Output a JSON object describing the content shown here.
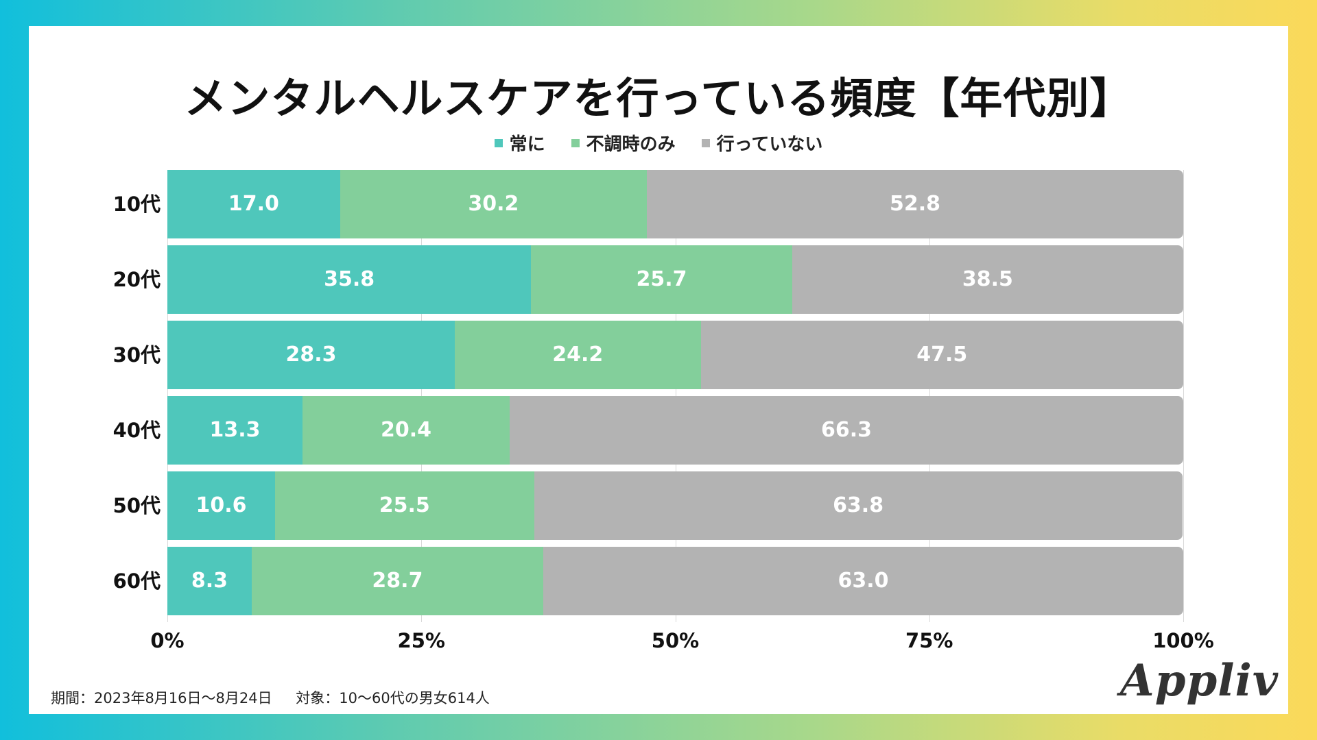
{
  "chart_data": {
    "type": "bar",
    "orientation": "horizontal",
    "stacked": true,
    "title": "メンタルヘルスケアを行っている頻度【年代別】",
    "categories": [
      "10代",
      "20代",
      "30代",
      "40代",
      "50代",
      "60代"
    ],
    "series": [
      {
        "name": "常に",
        "color": "#4fc7bb",
        "values": [
          17.0,
          35.8,
          28.3,
          13.3,
          10.6,
          8.3
        ]
      },
      {
        "name": "不調時のみ",
        "color": "#83cf9b",
        "values": [
          30.2,
          25.7,
          24.2,
          20.4,
          25.5,
          28.7
        ]
      },
      {
        "name": "行っていない",
        "color": "#b3b3b3",
        "values": [
          52.8,
          38.5,
          47.5,
          66.3,
          63.8,
          63.0
        ]
      }
    ],
    "xlim": [
      0,
      100
    ],
    "xticks": [
      "0%",
      "25%",
      "50%",
      "75%",
      "100%"
    ],
    "xtick_values": [
      0,
      25,
      50,
      75,
      100
    ],
    "legend_position": "top-center",
    "grid": true
  },
  "footer": {
    "period": "期間：2023年8月16日〜8月24日",
    "target": "対象：10〜60代の男女614人"
  },
  "logo": {
    "text": "Appliv"
  }
}
